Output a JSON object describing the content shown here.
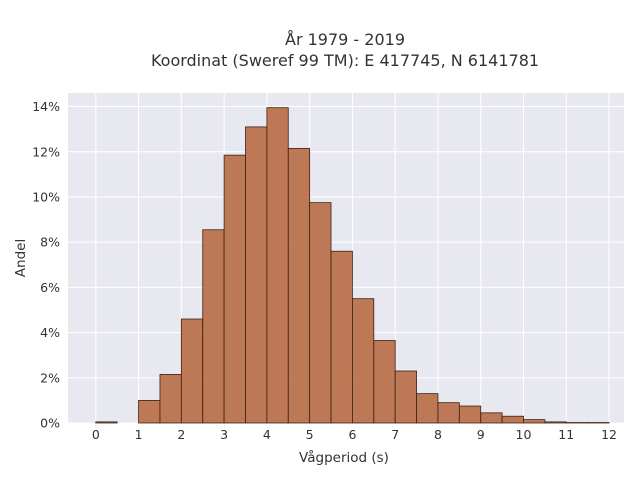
{
  "chart_data": {
    "type": "bar",
    "title_lines": [
      "År 1979 - 2019",
      "Koordinat (Sweref 99 TM): E 417745, N 6141781"
    ],
    "xlabel": "Vågperiod (s)",
    "ylabel": "Andel",
    "xlim": [
      -0.65,
      12.35
    ],
    "ylim": [
      0,
      14.6
    ],
    "x_ticks": [
      0,
      1,
      2,
      3,
      4,
      5,
      6,
      7,
      8,
      9,
      10,
      11,
      12
    ],
    "y_ticks": [
      0,
      2,
      4,
      6,
      8,
      10,
      12,
      14
    ],
    "y_tick_labels": [
      "0%",
      "2%",
      "4%",
      "6%",
      "8%",
      "10%",
      "12%",
      "14%"
    ],
    "bin_width": 0.5,
    "bins": [
      {
        "start": 0.0,
        "value": 0.05
      },
      {
        "start": 0.5,
        "value": 0.0
      },
      {
        "start": 1.0,
        "value": 1.0
      },
      {
        "start": 1.5,
        "value": 2.15
      },
      {
        "start": 2.0,
        "value": 4.6
      },
      {
        "start": 2.5,
        "value": 8.55
      },
      {
        "start": 3.0,
        "value": 11.85
      },
      {
        "start": 3.5,
        "value": 13.1
      },
      {
        "start": 4.0,
        "value": 13.95
      },
      {
        "start": 4.5,
        "value": 12.15
      },
      {
        "start": 5.0,
        "value": 9.75
      },
      {
        "start": 5.5,
        "value": 7.6
      },
      {
        "start": 6.0,
        "value": 5.5
      },
      {
        "start": 6.5,
        "value": 3.65
      },
      {
        "start": 7.0,
        "value": 2.3
      },
      {
        "start": 7.5,
        "value": 1.3
      },
      {
        "start": 8.0,
        "value": 0.9
      },
      {
        "start": 8.5,
        "value": 0.75
      },
      {
        "start": 9.0,
        "value": 0.45
      },
      {
        "start": 9.5,
        "value": 0.3
      },
      {
        "start": 10.0,
        "value": 0.15
      },
      {
        "start": 10.5,
        "value": 0.05
      },
      {
        "start": 11.0,
        "value": 0.02
      },
      {
        "start": 11.5,
        "value": 0.02
      }
    ],
    "grid": true,
    "colors": {
      "plot_background": "#e8e8f0",
      "bar_fill": "#b5643a",
      "bar_edge": "#3b2417"
    }
  }
}
